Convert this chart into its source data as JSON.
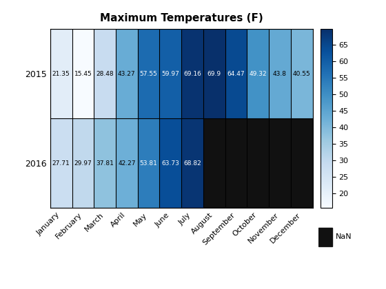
{
  "title": "Maximum Temperatures (F)",
  "years": [
    "2015",
    "2016"
  ],
  "months": [
    "January",
    "February",
    "March",
    "April",
    "May",
    "June",
    "July",
    "August",
    "September",
    "October",
    "November",
    "December"
  ],
  "values": [
    [
      21.35,
      15.45,
      28.48,
      43.27,
      57.55,
      59.97,
      69.16,
      69.9,
      64.47,
      49.32,
      43.8,
      40.55
    ],
    [
      27.71,
      29.97,
      37.81,
      42.27,
      53.81,
      63.73,
      68.82,
      null,
      null,
      null,
      null,
      null
    ]
  ],
  "vmin": 15.45,
  "vmax": 69.9,
  "colorbar_ticks": [
    20,
    25,
    30,
    35,
    40,
    45,
    50,
    55,
    60,
    65
  ],
  "nan_color": "#111111",
  "cmap": "Blues",
  "title_fontsize": 11,
  "label_fontsize": 8,
  "year_fontsize": 9,
  "cell_fontsize": 6.5
}
